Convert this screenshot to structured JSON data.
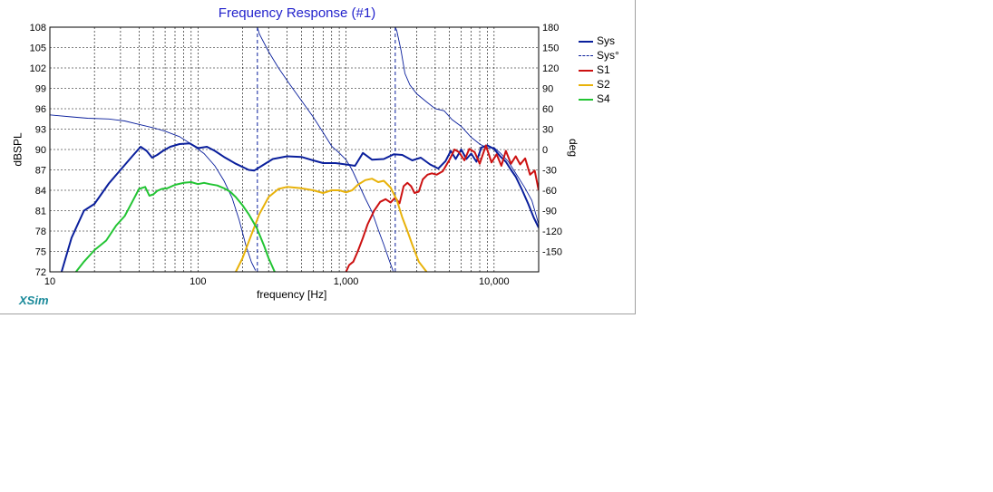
{
  "window": {
    "title": "Frequency Response (#1)",
    "brand": "XSim"
  },
  "chart_data": {
    "type": "line",
    "title": "Frequency Response (#1)",
    "xlabel": "frequency [Hz]",
    "ylabel": "dBSPL",
    "y2label": "deg",
    "xscale": "log",
    "xlim": [
      10,
      20000
    ],
    "ylim": [
      72,
      108
    ],
    "y2lim": [
      -180,
      180
    ],
    "x_ticks": [
      10,
      100,
      1000,
      10000
    ],
    "x_tick_labels": [
      "10",
      "100",
      "1,000",
      "10,000"
    ],
    "y_ticks": [
      72,
      75,
      78,
      81,
      84,
      87,
      90,
      93,
      96,
      99,
      102,
      105,
      108
    ],
    "y2_ticks": [
      -150,
      -120,
      -90,
      -60,
      -30,
      0,
      30,
      60,
      90,
      120,
      150,
      180
    ],
    "grid": true,
    "legend_position": "right",
    "series": [
      {
        "name": "Sys",
        "color": "#0a1f9c",
        "style": "solid",
        "axis": "left",
        "x": [
          12,
          14,
          17,
          20,
          25,
          30,
          36,
          41,
          45,
          49,
          53,
          58,
          65,
          75,
          88,
          100,
          115,
          130,
          150,
          180,
          220,
          240,
          270,
          320,
          400,
          500,
          600,
          700,
          850,
          1000,
          1150,
          1300,
          1500,
          1800,
          2100,
          2400,
          2800,
          3200,
          3700,
          4200,
          4700,
          5100,
          5500,
          6000,
          6500,
          7000,
          7600,
          8200,
          9000,
          10000,
          11000,
          12000,
          13000,
          14000,
          15500,
          17000,
          18500,
          20000
        ],
        "y": [
          72,
          77,
          81,
          82,
          85,
          87,
          89,
          90.4,
          89.8,
          88.8,
          89.2,
          89.8,
          90.4,
          90.8,
          90.9,
          90.2,
          90.4,
          89.8,
          88.9,
          87.9,
          87,
          86.9,
          87.6,
          88.6,
          89,
          88.9,
          88.4,
          88,
          88,
          87.8,
          87.6,
          89.5,
          88.5,
          88.6,
          89.3,
          89.2,
          88.4,
          88.8,
          87.8,
          87.2,
          88.3,
          89.8,
          88.6,
          90,
          88.6,
          89.4,
          88.2,
          90.3,
          90.6,
          90.1,
          89,
          88.2,
          87,
          86,
          84,
          82,
          80,
          78.5
        ]
      },
      {
        "name": "Sys°",
        "color": "#0a1f9c",
        "style": "dashed",
        "axis": "right",
        "x": [
          10,
          14,
          18,
          25,
          32,
          40,
          50,
          60,
          75,
          90,
          110,
          130,
          150,
          170,
          190,
          210,
          230,
          245,
          252,
          260,
          300,
          350,
          420,
          500,
          600,
          700,
          800,
          900,
          1000,
          1100,
          1200,
          1350,
          1500,
          1650,
          1800,
          1950,
          2050,
          2080,
          2150,
          2200,
          2350,
          2500,
          2700,
          3000,
          3500,
          4000,
          4600,
          5200,
          6000,
          7000,
          8000,
          9000,
          10000,
          11000,
          12500,
          14000,
          16000,
          18000,
          20000
        ],
        "y": [
          51,
          48,
          46,
          45,
          42,
          37,
          32,
          27,
          19,
          8,
          -6,
          -24,
          -46,
          -71,
          -104,
          -140,
          -166,
          -178,
          180,
          170,
          144,
          120,
          95,
          72,
          48,
          25,
          5,
          -5,
          -15,
          -30,
          -48,
          -72,
          -92,
          -118,
          -140,
          -162,
          -175,
          -179,
          180,
          175,
          146,
          112,
          95,
          82,
          70,
          60,
          57,
          44,
          34,
          18,
          8,
          2,
          3,
          -5,
          -18,
          -35,
          -55,
          -75,
          -110
        ]
      },
      {
        "name": "S1",
        "color": "#cc1111",
        "style": "solid",
        "axis": "left",
        "x": [
          1000,
          1050,
          1120,
          1200,
          1300,
          1400,
          1550,
          1700,
          1850,
          2000,
          2150,
          2300,
          2450,
          2600,
          2750,
          2900,
          3100,
          3300,
          3550,
          3800,
          4100,
          4500,
          5000,
          5400,
          5800,
          6300,
          6800,
          7400,
          8000,
          8800,
          9600,
          10400,
          11200,
          12000,
          13000,
          14000,
          15000,
          16200,
          17500,
          18800,
          20000
        ],
        "y": [
          72,
          73,
          73.5,
          75,
          77,
          79,
          81,
          82.3,
          82.7,
          82.2,
          82.9,
          82.1,
          84.6,
          85.1,
          84.6,
          83.6,
          83.8,
          85.6,
          86.3,
          86.5,
          86.3,
          86.8,
          88.5,
          90,
          89.6,
          88.4,
          90.1,
          89.6,
          87.9,
          90.6,
          88.1,
          89.3,
          87.6,
          89.8,
          87.9,
          89,
          87.8,
          88.7,
          86.3,
          86.9,
          84
        ]
      },
      {
        "name": "S2",
        "color": "#e8b20a",
        "style": "solid",
        "axis": "left",
        "x": [
          180,
          200,
          230,
          260,
          300,
          350,
          400,
          500,
          600,
          700,
          800,
          900,
          1000,
          1100,
          1200,
          1350,
          1500,
          1650,
          1800,
          2000,
          2200,
          2400,
          2600,
          2800,
          3100,
          3500
        ],
        "y": [
          72,
          74,
          77.5,
          80.5,
          83,
          84.2,
          84.5,
          84.3,
          84,
          83.6,
          84,
          84,
          83.7,
          84,
          84.8,
          85.5,
          85.7,
          85.2,
          85.4,
          84.4,
          82.6,
          80,
          78,
          76,
          73.5,
          72
        ]
      },
      {
        "name": "S4",
        "color": "#22c433",
        "style": "solid",
        "axis": "left",
        "x": [
          15,
          17,
          20,
          24,
          28,
          32,
          36,
          40,
          44,
          47,
          50,
          53,
          57,
          62,
          70,
          80,
          90,
          100,
          110,
          120,
          135,
          150,
          165,
          180,
          200,
          220,
          250,
          280,
          300,
          330
        ],
        "y": [
          72,
          73.5,
          75.2,
          76.6,
          78.8,
          80.2,
          82.3,
          84.2,
          84.5,
          83.2,
          83.4,
          83.9,
          84.2,
          84.3,
          84.8,
          85.1,
          85.2,
          84.9,
          85.1,
          84.9,
          84.7,
          84.3,
          83.8,
          83,
          81.8,
          80.5,
          78.4,
          75.8,
          74,
          72
        ]
      }
    ]
  }
}
